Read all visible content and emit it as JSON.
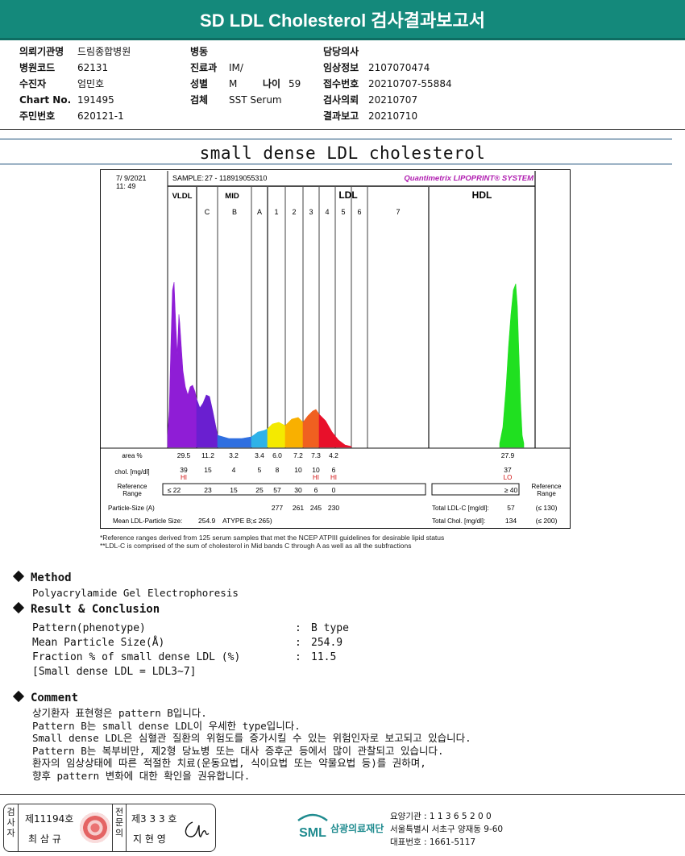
{
  "report_title": "SD LDL Cholesterol 검사결과보고서",
  "info": {
    "col1": [
      {
        "label": "의뢰기관명",
        "value": "드림종합병원"
      },
      {
        "label": "병원코드",
        "value": "62131"
      },
      {
        "label": "수진자",
        "value": "엄민호"
      },
      {
        "label": "Chart No.",
        "value": "191495"
      },
      {
        "label": "주민번호",
        "value": "620121-1"
      }
    ],
    "col2": [
      {
        "label": "병동",
        "value": ""
      },
      {
        "label": "진료과",
        "value": "IM/"
      },
      {
        "label": "성별",
        "value": "M"
      },
      {
        "label": "검체",
        "value": "SST Serum"
      }
    ],
    "age_label": "나이",
    "age_value": "59",
    "col3": [
      {
        "label": "담당의사",
        "value": ""
      },
      {
        "label": "임상정보",
        "value": "2107070474"
      },
      {
        "label": "접수번호",
        "value": "20210707-55884"
      },
      {
        "label": "검사의뢰",
        "value": "20210707"
      },
      {
        "label": "결과보고",
        "value": "20210710"
      }
    ]
  },
  "section_heading": "small dense LDL cholesterol",
  "chart_data": {
    "type": "area",
    "date": "7/ 9/2021",
    "time": "11: 49",
    "sample_label": "SAMPLE:",
    "sample_id": "27 - 118919055310",
    "system": "Quantimetrix LIPOPRINT® SYSTEM",
    "groups": [
      "VLDL",
      "MID",
      "LDL",
      "HDL"
    ],
    "bands": [
      "C",
      "B",
      "A",
      "1",
      "2",
      "3",
      "4",
      "5",
      "6",
      "7"
    ],
    "row_labels": {
      "area": "area %",
      "chol": "chol. [mg/dl]",
      "reference": "Reference Range",
      "particle": "Particle-Size (A)",
      "mean": "Mean LDL-Particle Size:"
    },
    "area_percent": [
      "29.5",
      "11.2",
      "3.2",
      "3.4",
      "6.0",
      "7.2",
      "7.3",
      "4.2",
      "27.9"
    ],
    "chol_mgdl": [
      "39",
      "15",
      "4",
      "5",
      "8",
      "10",
      "10",
      "6",
      "37"
    ],
    "flags": [
      "HI",
      "",
      "",
      "",
      "",
      "",
      "HI",
      "HI",
      "LO"
    ],
    "reference": [
      "≤ 22",
      "23",
      "15",
      "25",
      "57",
      "30",
      "6",
      "0",
      "≥ 40"
    ],
    "particle_size": [
      "277",
      "261",
      "245",
      "230"
    ],
    "mean_ldl_particle_size": "254.9",
    "mean_type": "ATYPE B;≤ 265)",
    "total_ldl_c_label": "Total LDL-C [mg/dl]:",
    "total_ldl_c": "57",
    "total_ldl_ref": "(≤ 130)",
    "total_chol_label": "Total Chol. [mg/dl]:",
    "total_chol": "134",
    "total_chol_ref": "(≤ 200)",
    "right_ref_label": "Reference Range",
    "colors": {
      "vldl": "#8f1dd6",
      "midC": "#6a1fd0",
      "midB": "#2f6fe0",
      "midA": "#2fb2e8",
      "ldl1": "#f4ea00",
      "ldl2": "#f9b000",
      "ldl3": "#f06020",
      "ldl4": "#e8102a",
      "hdl": "#20e020",
      "flag": "#d01010",
      "system": "#b01eb0"
    }
  },
  "footnotes": [
    "*Reference ranges derived from 125 serum samples that met the NCEP ATPIII guidelines for desirable lipid status",
    "**LDL-C is comprised of the sum of cholesterol in Mid bands C through A as well as all the subfractions"
  ],
  "method": {
    "heading": "Method",
    "text": "Polyacrylamide Gel Electrophoresis"
  },
  "result": {
    "heading": "Result & Conclusion",
    "rows": [
      {
        "label": "Pattern(phenotype)",
        "value": "B type"
      },
      {
        "label": "Mean Particle Size(Å)",
        "value": "254.9"
      },
      {
        "label": "Fraction % of small dense LDL (%)",
        "value": "11.5"
      }
    ],
    "note": "[Small dense LDL = LDL3~7]"
  },
  "comment": {
    "heading": "Comment",
    "lines": [
      "상기환자 표현형은 pattern B입니다.",
      "Pattern B는 small dense LDL이 우세한 type입니다.",
      "Small dense LDL은 심혈관 질환의 위험도를 증가시킬 수 있는 위험인자로 보고되고 있습니다.",
      "Pattern B는 복부비만, 제2형 당뇨병 또는 대사 증후군 등에서 많이 관찰되고 있습니다.",
      "환자의 임상상태에 따른 적절한 치료(운동요법, 식이요법 또는 약물요법 등)를 권하며,",
      "향후 pattern 변화에 대한 확인을 권유합니다."
    ]
  },
  "footer": {
    "label1": "검사자",
    "lic1": "제11194호",
    "name1": "최 삼 규",
    "label2": "전문의",
    "lic2": "제3 3 3 호",
    "name2": "지 현 영",
    "logo_letters": "SML",
    "logo_name": "삼광의료재단",
    "org_lines": [
      "요양기관 : 1 1 3 6 5 2 0 0",
      "서울특별시 서초구 양재동 9-60",
      "대표번호 : 1661-5117"
    ]
  }
}
